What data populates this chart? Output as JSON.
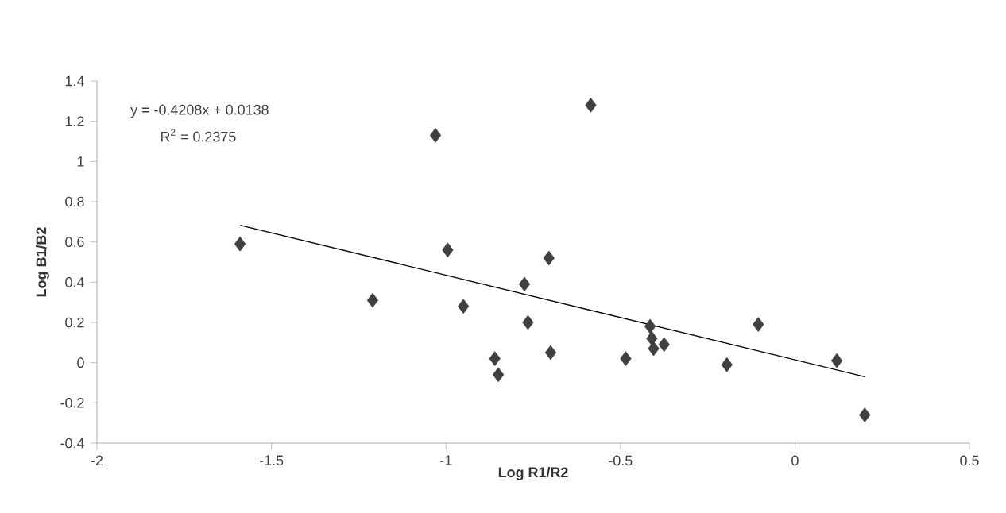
{
  "chart_data": {
    "type": "scatter",
    "xlabel": "Log R1/R2",
    "ylabel": "Log B1/B2",
    "xlim": [
      -2,
      0.5
    ],
    "xticks": [
      -2,
      -1.5,
      -1,
      -0.5,
      0,
      0.5
    ],
    "ylim": [
      -0.4,
      1.4
    ],
    "yticks": [
      -0.4,
      -0.2,
      0,
      0.2,
      0.4,
      0.6,
      0.8,
      1,
      1.2,
      1.4
    ],
    "grid": false,
    "annotations": [
      "y = -0.4208x + 0.0138",
      "R$^{2}$ = 0.2375"
    ],
    "series": [
      {
        "marker": "diamond",
        "color": "#404040",
        "x": [
          -1.59,
          -1.21,
          -1.03,
          -0.995,
          -0.95,
          -0.86,
          -0.85,
          -0.775,
          -0.765,
          -0.705,
          -0.7,
          -0.585,
          -0.485,
          -0.415,
          -0.405,
          -0.375,
          -0.41,
          -0.195,
          -0.105,
          0.12,
          0.2
        ],
        "values": [
          0.59,
          0.31,
          1.13,
          0.56,
          0.28,
          0.02,
          -0.06,
          0.39,
          0.2,
          0.52,
          0.05,
          1.28,
          0.02,
          0.18,
          0.07,
          0.09,
          0.12,
          -0.01,
          0.19,
          0.01,
          -0.26
        ]
      },
      {
        "type": "line",
        "marker": "none",
        "line_style": "solid",
        "color": "#000000",
        "x": [
          -1.59,
          0.2
        ],
        "values": [
          0.683,
          -0.07
        ]
      }
    ]
  }
}
